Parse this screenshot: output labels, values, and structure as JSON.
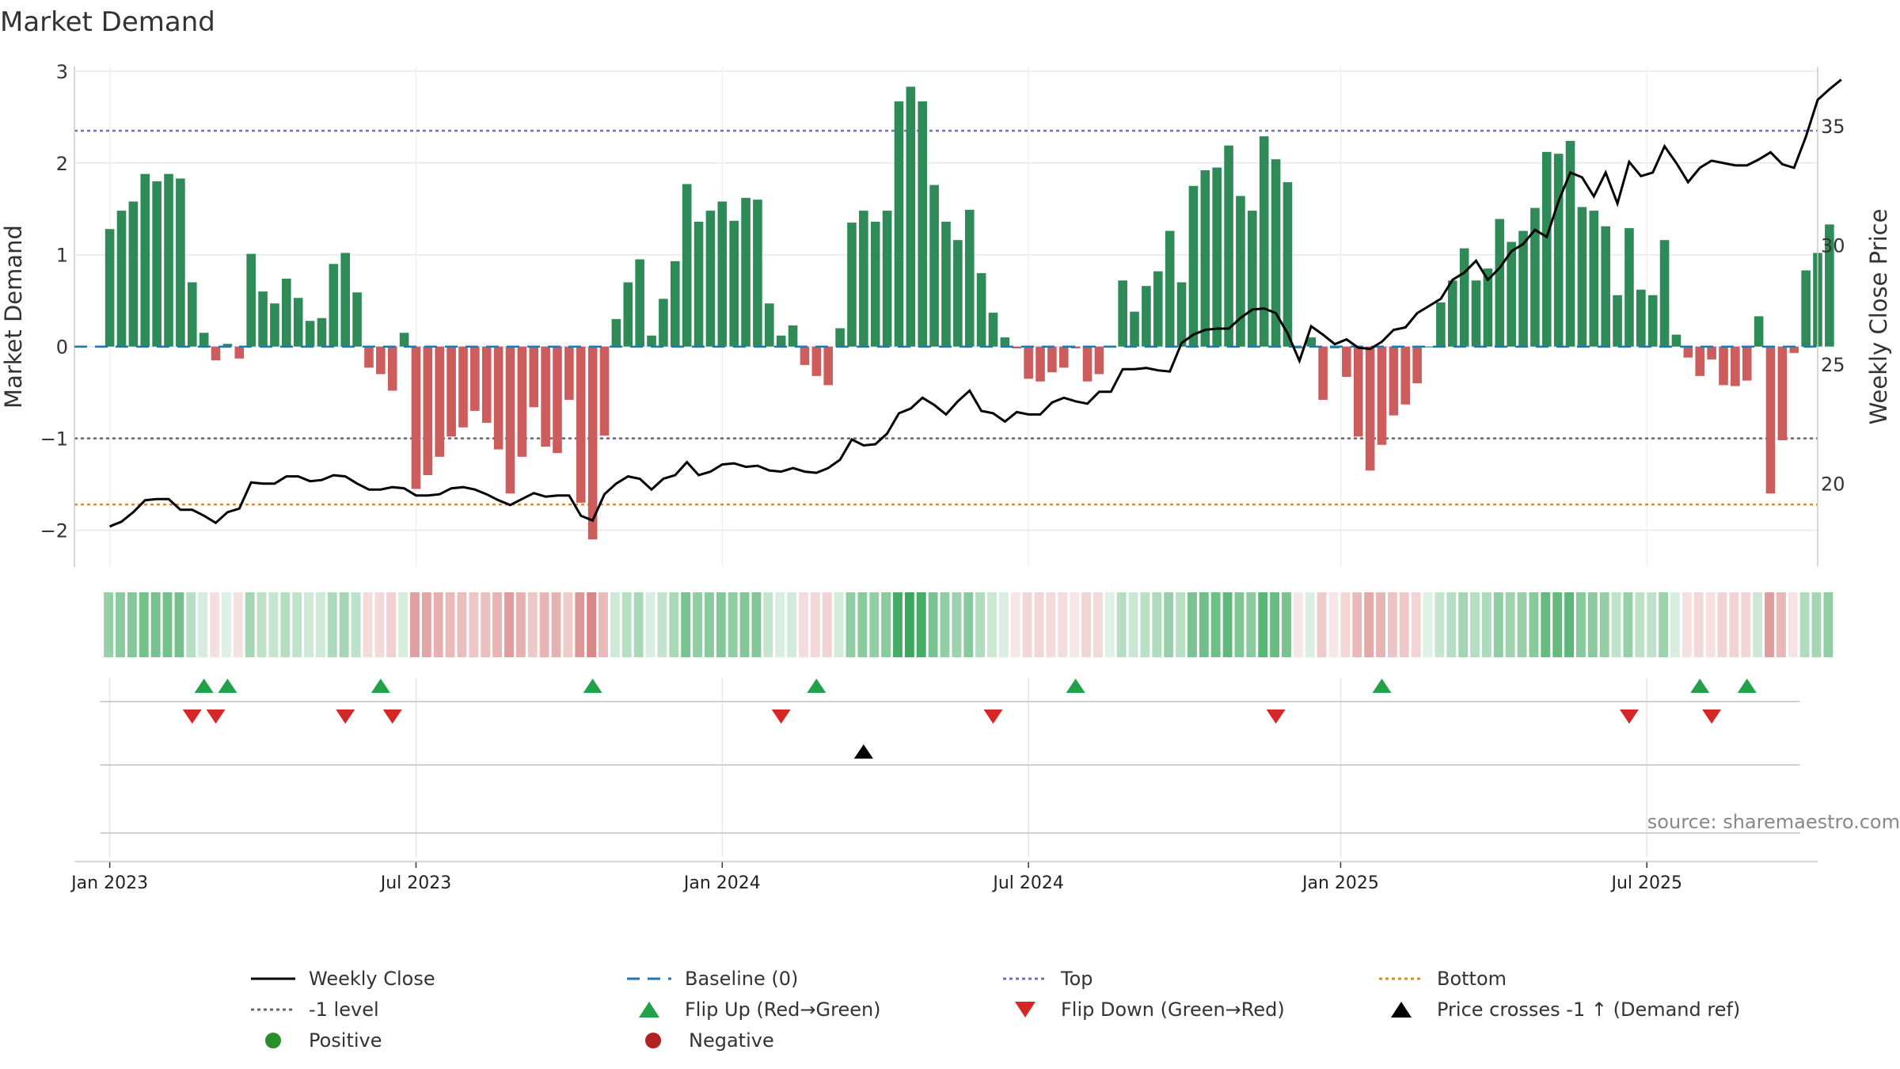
{
  "chart_data": {
    "type": "bar",
    "title": "Market Demand",
    "ylabel_left": "Market Demand",
    "ylabel_right": "Weekly Close Price",
    "source": "source: sharemaestro.com",
    "left_axis": {
      "ylim": [
        -2.4,
        3.05
      ],
      "ticks": [
        3,
        2,
        1,
        0,
        -1,
        -2
      ],
      "tick_labels": [
        "3",
        "2",
        "1",
        "0",
        "−1",
        "−2"
      ]
    },
    "right_axis": {
      "ylim": [
        16.5,
        37.5
      ],
      "ticks": [
        35,
        30,
        25,
        20
      ],
      "tick_labels": [
        "35",
        "30",
        "25",
        "20"
      ]
    },
    "x_range_weeks": [
      -3,
      145
    ],
    "x_ticks": [
      {
        "week": 0,
        "label": "Jan 2023"
      },
      {
        "week": 26,
        "label": "Jul 2023"
      },
      {
        "week": 52,
        "label": "Jan 2024"
      },
      {
        "week": 78,
        "label": "Jul 2024"
      },
      {
        "week": 104.5,
        "label": "Jan 2025"
      },
      {
        "week": 130.5,
        "label": "Jul 2025"
      }
    ],
    "reference_lines": {
      "baseline": 0,
      "top": 2.35,
      "minus_one": -1,
      "bottom": -1.72
    },
    "demand": [
      1.28,
      1.48,
      1.58,
      1.88,
      1.8,
      1.88,
      1.83,
      0.7,
      0.15,
      -0.15,
      0.03,
      -0.13,
      1.01,
      0.6,
      0.47,
      0.74,
      0.53,
      0.28,
      0.31,
      0.9,
      1.02,
      0.59,
      -0.23,
      -0.3,
      -0.48,
      0.15,
      -1.55,
      -1.4,
      -1.2,
      -0.98,
      -0.88,
      -0.7,
      -0.83,
      -1.12,
      -1.6,
      -1.2,
      -0.66,
      -1.09,
      -1.16,
      -0.58,
      -1.7,
      -2.1,
      -0.97,
      0.3,
      0.7,
      0.95,
      0.12,
      0.52,
      0.93,
      1.77,
      1.36,
      1.48,
      1.58,
      1.37,
      1.62,
      1.6,
      0.47,
      0.12,
      0.23,
      -0.2,
      -0.32,
      -0.42,
      0.2,
      1.35,
      1.48,
      1.36,
      1.48,
      2.67,
      2.83,
      2.67,
      1.76,
      1.36,
      1.16,
      1.49,
      0.8,
      0.37,
      0.1,
      -0.02,
      -0.35,
      -0.38,
      -0.28,
      -0.23,
      -0.02,
      -0.38,
      -0.3,
      0.0,
      0.72,
      0.38,
      0.66,
      0.82,
      1.26,
      0.7,
      1.75,
      1.92,
      1.95,
      2.19,
      1.64,
      1.48,
      2.29,
      2.04,
      1.79,
      -0.02,
      0.1,
      -0.58,
      -0.02,
      -0.33,
      -0.98,
      -1.35,
      -1.07,
      -0.75,
      -0.63,
      -0.4,
      0.0,
      0.48,
      0.72,
      1.07,
      0.72,
      0.85,
      1.39,
      1.14,
      1.26,
      1.51,
      2.12,
      2.1,
      2.24,
      1.52,
      1.48,
      1.31,
      0.56,
      1.29,
      0.62,
      0.56,
      1.16,
      0.13,
      -0.12,
      -0.32,
      -0.14,
      -0.42,
      -0.43,
      -0.37,
      0.33,
      -1.6,
      -1.02,
      -0.07,
      0.83,
      1.02,
      1.33
    ],
    "weekly_close": [
      18.2,
      18.4,
      18.8,
      19.3,
      19.35,
      19.35,
      18.9,
      18.9,
      18.65,
      18.35,
      18.8,
      18.95,
      20.05,
      20.0,
      20.0,
      20.3,
      20.3,
      20.1,
      20.15,
      20.35,
      20.3,
      20.0,
      19.75,
      19.75,
      19.85,
      19.8,
      19.5,
      19.5,
      19.55,
      19.8,
      19.85,
      19.75,
      19.55,
      19.3,
      19.1,
      19.35,
      19.6,
      19.45,
      19.5,
      19.5,
      18.65,
      18.45,
      19.55,
      20.0,
      20.3,
      20.2,
      19.75,
      20.2,
      20.35,
      20.9,
      20.35,
      20.5,
      20.8,
      20.85,
      20.7,
      20.75,
      20.55,
      20.5,
      20.65,
      20.5,
      20.45,
      20.65,
      21.0,
      21.85,
      21.6,
      21.65,
      22.1,
      22.95,
      23.15,
      23.6,
      23.3,
      22.9,
      23.45,
      23.9,
      23.05,
      22.95,
      22.6,
      23.0,
      22.9,
      22.9,
      23.4,
      23.6,
      23.45,
      23.35,
      23.85,
      23.85,
      24.8,
      24.8,
      24.85,
      24.75,
      24.7,
      25.9,
      26.25,
      26.45,
      26.5,
      26.5,
      26.95,
      27.3,
      27.35,
      27.15,
      26.3,
      25.15,
      26.6,
      26.25,
      25.85,
      26.05,
      25.7,
      25.65,
      25.95,
      26.45,
      26.55,
      27.15,
      27.45,
      27.75,
      28.55,
      28.85,
      29.35,
      28.55,
      29.05,
      29.75,
      30.05,
      30.65,
      30.35,
      31.85,
      33.05,
      32.85,
      32.05,
      33.05,
      31.75,
      33.5,
      32.9,
      33.05,
      34.15,
      33.45,
      32.65,
      33.25,
      33.55,
      33.45,
      33.35,
      33.35,
      33.6,
      33.9,
      33.4,
      33.25,
      34.55,
      36.1,
      36.55,
      36.95
    ],
    "flip_up_weeks": [
      8,
      10,
      23,
      41,
      60,
      82,
      108,
      135,
      139
    ],
    "flip_down_weeks": [
      7,
      9,
      20,
      24,
      57,
      75,
      99,
      129,
      136
    ],
    "price_cross_weeks": [
      64
    ],
    "legend": [
      [
        "Weekly Close",
        "Baseline (0)",
        "Top",
        "Bottom"
      ],
      [
        "-1 level",
        "Flip Up (Red→Green)",
        "Flip Down (Green→Red)",
        "Price crosses -1 ↑ (Demand ref)"
      ],
      [
        "Positive",
        "Negative"
      ]
    ]
  },
  "colors": {
    "positive_bar": "#2e8b57",
    "negative_bar": "#cd5c5c",
    "price_line": "#000000",
    "baseline": "#1f77b4",
    "top_line": "#7070b8",
    "minus_one_line": "#666677",
    "bottom_line": "#e08a1e",
    "flip_up": "#22a04a",
    "flip_down": "#d62728",
    "cross": "#000000",
    "positive_dot": "#2a8f2a",
    "negative_dot": "#b22222"
  }
}
